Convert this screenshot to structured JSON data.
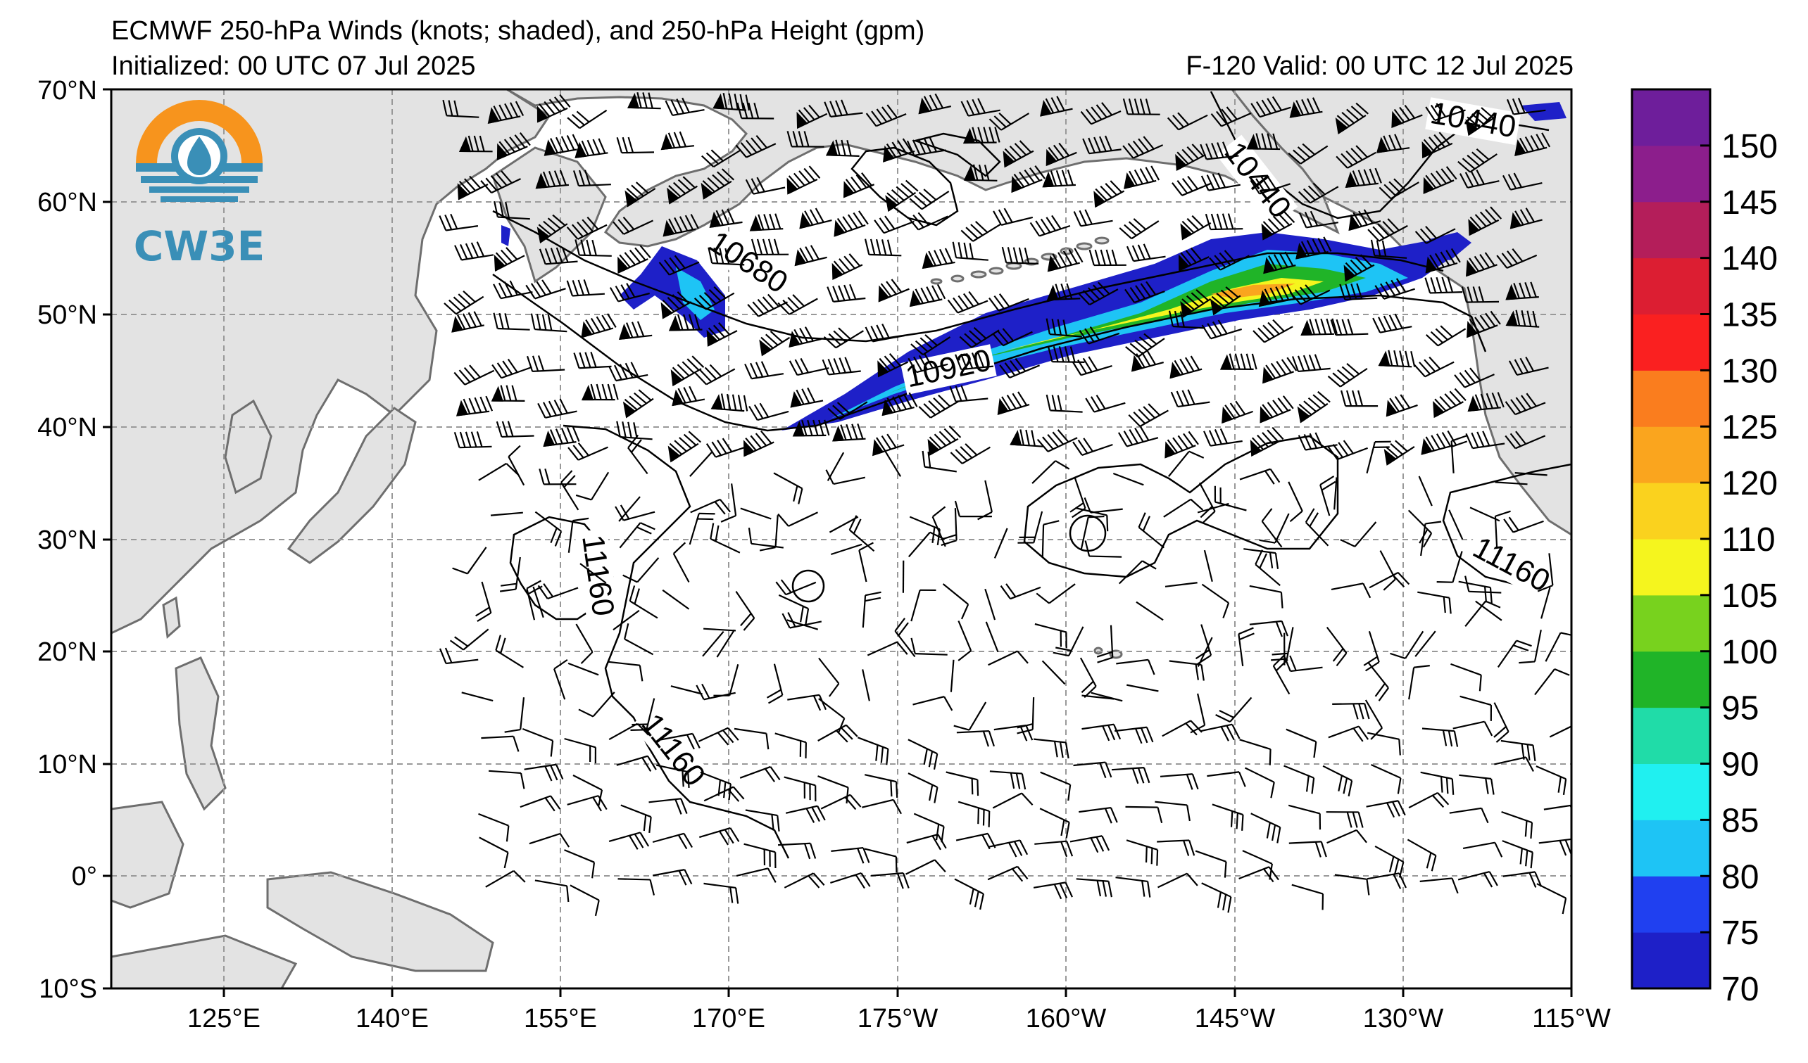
{
  "header": {
    "title": "ECMWF 250-hPa Winds (knots; shaded), and 250-hPa Height (gpm)",
    "initialized": "Initialized: 00 UTC 07 Jul 2025",
    "valid": "F-120  Valid: 00 UTC 12 Jul 2025"
  },
  "logo": {
    "text": "CW3E"
  },
  "axes": {
    "lat_labels": [
      "70°N",
      "60°N",
      "50°N",
      "40°N",
      "30°N",
      "20°N",
      "10°N",
      "0°",
      "10°S"
    ],
    "lon_labels": [
      "125°E",
      "140°E",
      "155°E",
      "170°E",
      "175°W",
      "160°W",
      "145°W",
      "130°W",
      "115°W"
    ]
  },
  "contours": {
    "labels": [
      "10440",
      "10440",
      "10680",
      "10920",
      "11160",
      "11160",
      "11160"
    ]
  },
  "colorbar": {
    "ticks": [
      "70",
      "75",
      "80",
      "85",
      "90",
      "95",
      "100",
      "105",
      "110",
      "120",
      "125",
      "130",
      "135",
      "140",
      "145",
      "150"
    ],
    "colors": [
      "#1e20c8",
      "#2040f0",
      "#1ec4f5",
      "#20f0f0",
      "#20dca8",
      "#20b428",
      "#78d21e",
      "#f5f51e",
      "#fad21e",
      "#faa51e",
      "#fa7d1e",
      "#fa2020",
      "#dc1e32",
      "#b41e5a",
      "#8c1e8c",
      "#6e1e9b"
    ]
  },
  "colors": {
    "land": "#e3e3e3",
    "coast": "#6e6e6e",
    "grid": "#999999"
  }
}
